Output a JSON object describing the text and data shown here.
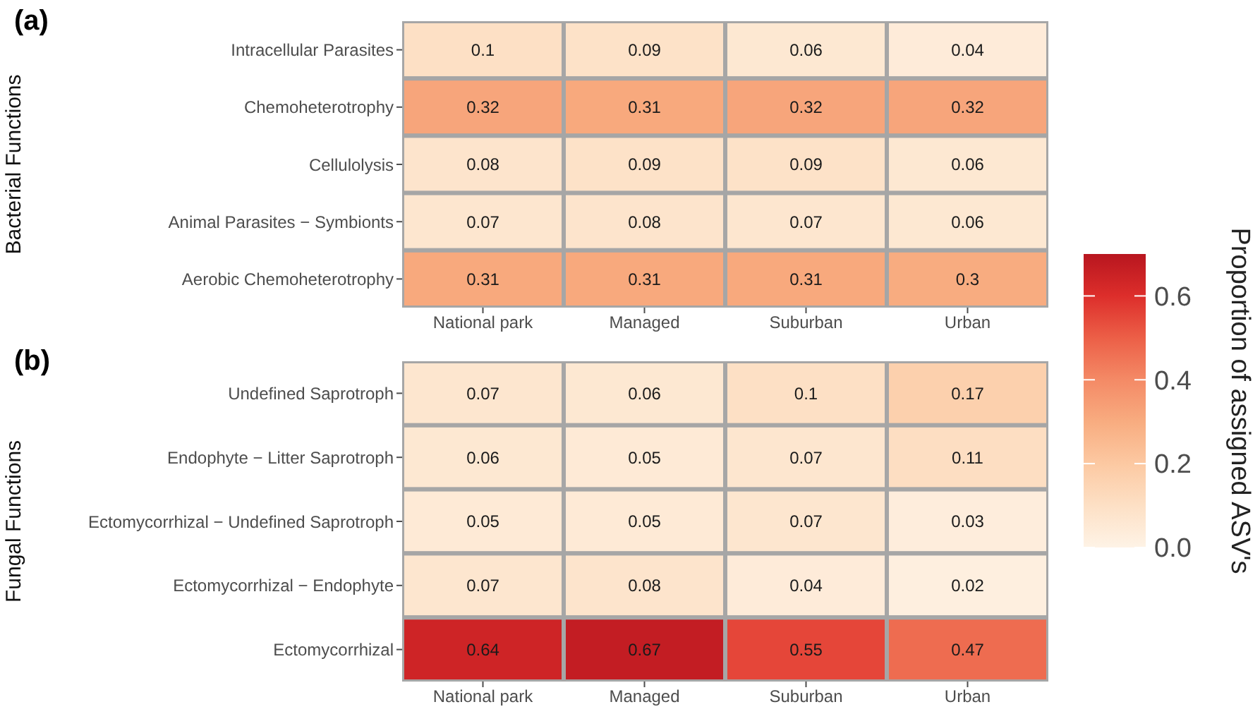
{
  "chart_data": [
    {
      "type": "heatmap",
      "title": "(a)",
      "ylabel": "Bacterial Functions",
      "clabel": "Proportion of assigned ASV's",
      "categories": [
        "National park",
        "Managed",
        "Suburban",
        "Urban"
      ],
      "y_categories": [
        "Intracellular Parasites",
        "Chemoheterotrophy",
        "Cellulolysis",
        "Animal Parasites − Symbionts",
        "Aerobic Chemoheterotrophy"
      ],
      "cells": [
        [
          0.1,
          0.09,
          0.06,
          0.04
        ],
        [
          0.32,
          0.31,
          0.32,
          0.32
        ],
        [
          0.08,
          0.09,
          0.09,
          0.06
        ],
        [
          0.07,
          0.08,
          0.07,
          0.06
        ],
        [
          0.31,
          0.31,
          0.31,
          0.3
        ]
      ],
      "clim": [
        0,
        0.7
      ],
      "cticks": [
        {
          "value": 0,
          "label": "0.0"
        },
        {
          "value": 0.2,
          "label": "0.2"
        },
        {
          "value": 0.4,
          "label": "0.4"
        },
        {
          "value": 0.6,
          "label": "0.6"
        }
      ],
      "data_labels": true
    },
    {
      "type": "heatmap",
      "title": "(b)",
      "ylabel": "Fungal Functions",
      "categories": [
        "National park",
        "Managed",
        "Suburban",
        "Urban"
      ],
      "y_categories": [
        "Undefined Saprotroph",
        "Endophyte − Litter Saprotroph",
        "Ectomycorrhizal − Undefined Saprotroph",
        "Ectomycorrhizal − Endophyte",
        "Ectomycorrhizal"
      ],
      "cells": [
        [
          0.07,
          0.06,
          0.1,
          0.17
        ],
        [
          0.06,
          0.05,
          0.07,
          0.11
        ],
        [
          0.05,
          0.05,
          0.07,
          0.03
        ],
        [
          0.07,
          0.08,
          0.04,
          0.02
        ],
        [
          0.64,
          0.67,
          0.55,
          0.47
        ]
      ],
      "data_labels": true
    }
  ]
}
